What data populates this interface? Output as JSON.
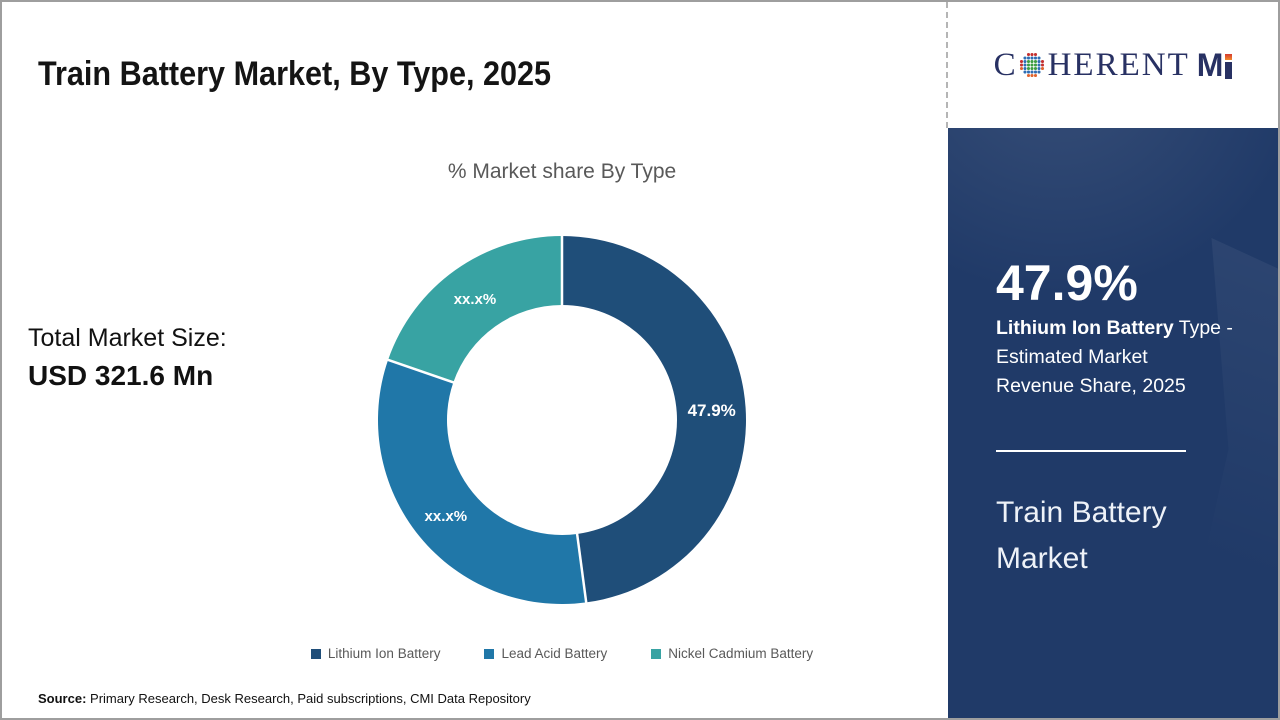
{
  "header": {
    "title": "Train Battery Market, By Type, 2025"
  },
  "brand": {
    "name": "CoherentMI",
    "serif_c": "C",
    "serif_rest": "HERENT",
    "bold_m": "M"
  },
  "left_panel": {
    "label": "Total Market Size:",
    "value": "USD 321.6 Mn"
  },
  "chart_data": {
    "type": "pie",
    "donut": true,
    "title": "% Market share By Type",
    "start_angle_deg": 0,
    "direction": "clockwise",
    "legend_position": "bottom",
    "segments": [
      {
        "name": "Lithium Ion Battery",
        "display_label": "47.9%",
        "value": 47.9,
        "value_masked": false,
        "color": "#1f4e79"
      },
      {
        "name": "Lead Acid Battery",
        "display_label": "xx.x%",
        "value": 32.4,
        "value_masked": true,
        "color": "#2077a8"
      },
      {
        "name": "Nickel Cadmium Battery",
        "display_label": "xx.x%",
        "value": 19.7,
        "value_masked": true,
        "color": "#38a3a3"
      }
    ]
  },
  "sidebar": {
    "stat_value": "47.9%",
    "stat_desc": {
      "bold": "Lithium Ion Battery",
      "line1_rest": " Type -",
      "line2": "Estimated Market",
      "line3": "Revenue Share, 2025"
    },
    "market_name": "Train Battery Market"
  },
  "footer": {
    "source_label": "Source:",
    "source_text": " Primary Research, Desk Research, Paid subscriptions, CMI Data Repository"
  }
}
